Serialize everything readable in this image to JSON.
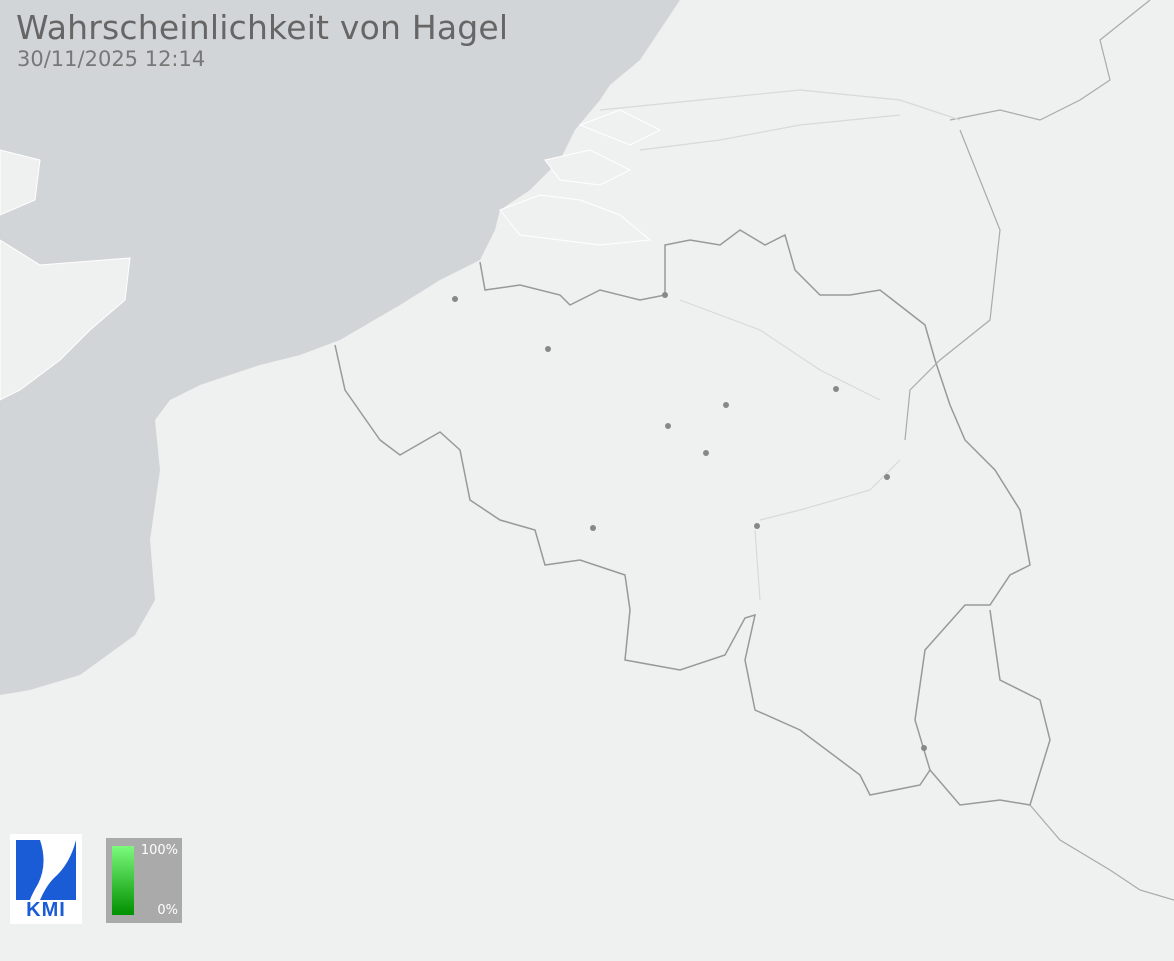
{
  "header": {
    "title": "Wahrscheinlichkeit von Hagel",
    "timestamp": "30/11/2025 12:14"
  },
  "logo": {
    "text": "KMI",
    "color": "#1a5bd6"
  },
  "legend": {
    "max_label": "100%",
    "min_label": "0%",
    "color_high": "#7cfa7c",
    "color_low": "#009000"
  },
  "colors": {
    "sea": "#d2d5d7",
    "land": "#eff0f0",
    "border": "#999999",
    "city": "#888888"
  }
}
